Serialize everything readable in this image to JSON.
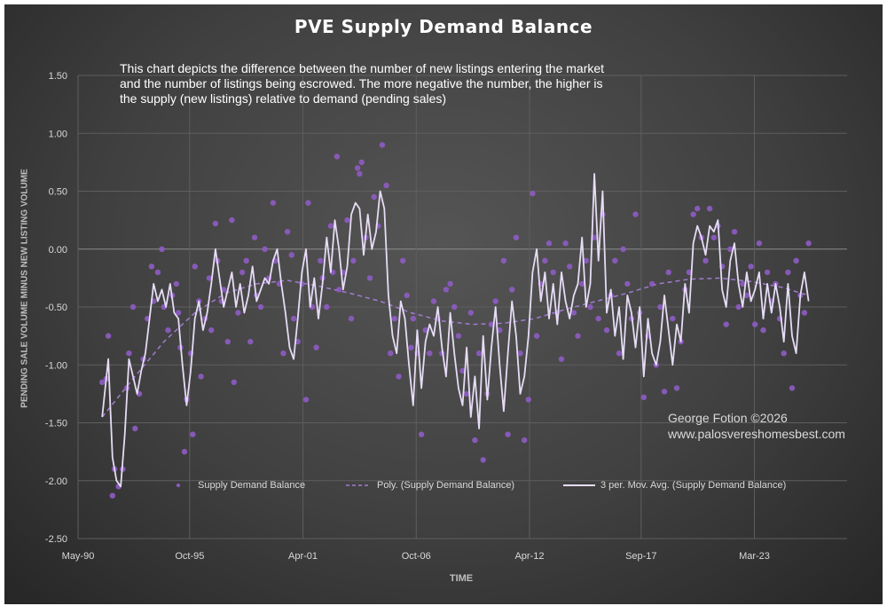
{
  "chart_data": {
    "type": "scatter",
    "title": "PVE Supply Demand Balance",
    "annotation": "This chart depicts the difference between the number of new listings entering the market and the number of listings being escrowed.  The more negative the number, the higher is the supply (new listings) relative to demand (pending sales)",
    "credit_line1": "George Fotion ©2026",
    "credit_line2": "www.palosvereshomesbest.com",
    "xlabel": "TIME",
    "ylabel": "PENDING SALE VOLUME MINUS NEW LISTING VOLUME",
    "ylim": [
      -2.5,
      1.5
    ],
    "yticks": [
      "1.50",
      "1.00",
      "0.50",
      "0.00",
      "-0.50",
      "-1.00",
      "-1.50",
      "-2.00",
      "-2.50"
    ],
    "xlim": [
      1990.33,
      2027.67
    ],
    "xticks": [
      {
        "label": "May-90",
        "x": 1990.33
      },
      {
        "label": "Oct-95",
        "x": 1995.75
      },
      {
        "label": "Apr-01",
        "x": 2001.25
      },
      {
        "label": "Oct-06",
        "x": 2006.75
      },
      {
        "label": "Apr-12",
        "x": 2012.25
      },
      {
        "label": "Sep-17",
        "x": 2017.67
      },
      {
        "label": "Mar-23",
        "x": 2023.17
      }
    ],
    "grid": true,
    "legend_position": "bottom",
    "colors": {
      "points": "#8e5cc4",
      "poly_trend": "#a07ccf",
      "moving_avg": "#e6dcf5",
      "grid": "#5e5e5e"
    },
    "series": [
      {
        "name": "Supply Demand Balance",
        "kind": "scatter"
      },
      {
        "name": "Poly. (Supply Demand Balance)",
        "kind": "trend"
      },
      {
        "name": "3 per. Mov. Avg. (Supply Demand Balance)",
        "kind": "moving_average"
      }
    ],
    "points": [
      [
        1991.5,
        -1.15
      ],
      [
        1991.7,
        -1.12
      ],
      [
        1991.8,
        -0.75
      ],
      [
        1992.0,
        -2.13
      ],
      [
        1992.1,
        -1.9
      ],
      [
        1992.3,
        -2.05
      ],
      [
        1992.5,
        -1.9
      ],
      [
        1992.7,
        -1.2
      ],
      [
        1992.8,
        -0.9
      ],
      [
        1993.0,
        -0.5
      ],
      [
        1993.1,
        -1.55
      ],
      [
        1993.3,
        -1.25
      ],
      [
        1993.5,
        -0.95
      ],
      [
        1993.7,
        -0.6
      ],
      [
        1993.9,
        -0.15
      ],
      [
        1994.0,
        -0.45
      ],
      [
        1994.2,
        -0.2
      ],
      [
        1994.4,
        0.0
      ],
      [
        1994.5,
        -0.5
      ],
      [
        1994.7,
        -0.7
      ],
      [
        1994.9,
        -0.4
      ],
      [
        1995.1,
        -0.3
      ],
      [
        1995.2,
        -0.55
      ],
      [
        1995.3,
        -0.85
      ],
      [
        1995.5,
        -1.75
      ],
      [
        1995.6,
        -1.3
      ],
      [
        1995.8,
        -0.9
      ],
      [
        1995.9,
        -1.6
      ],
      [
        1996.0,
        -0.15
      ],
      [
        1996.2,
        -0.45
      ],
      [
        1996.3,
        -1.1
      ],
      [
        1996.5,
        -0.6
      ],
      [
        1996.7,
        -0.25
      ],
      [
        1996.8,
        -0.7
      ],
      [
        1997.0,
        0.22
      ],
      [
        1997.1,
        -0.1
      ],
      [
        1997.3,
        -0.45
      ],
      [
        1997.4,
        -0.35
      ],
      [
        1997.6,
        -0.8
      ],
      [
        1997.8,
        0.25
      ],
      [
        1997.9,
        -1.15
      ],
      [
        1998.1,
        -0.55
      ],
      [
        1998.3,
        -0.2
      ],
      [
        1998.5,
        -0.1
      ],
      [
        1998.7,
        -0.8
      ],
      [
        1998.9,
        0.1
      ],
      [
        1999.0,
        -0.4
      ],
      [
        1999.2,
        -0.5
      ],
      [
        1999.4,
        0.0
      ],
      [
        1999.6,
        -0.25
      ],
      [
        1999.8,
        0.4
      ],
      [
        1999.9,
        -0.1
      ],
      [
        2000.1,
        -0.3
      ],
      [
        2000.3,
        -0.9
      ],
      [
        2000.5,
        0.15
      ],
      [
        2000.7,
        -0.05
      ],
      [
        2000.8,
        -0.6
      ],
      [
        2001.0,
        -0.8
      ],
      [
        2001.2,
        -0.3
      ],
      [
        2001.4,
        -1.3
      ],
      [
        2001.5,
        0.4
      ],
      [
        2001.7,
        -0.5
      ],
      [
        2001.9,
        -0.85
      ],
      [
        2002.1,
        -0.1
      ],
      [
        2002.2,
        -0.25
      ],
      [
        2002.4,
        -0.5
      ],
      [
        2002.6,
        0.2
      ],
      [
        2002.7,
        -0.2
      ],
      [
        2002.9,
        0.8
      ],
      [
        2003.0,
        -0.35
      ],
      [
        2003.2,
        -0.2
      ],
      [
        2003.4,
        0.25
      ],
      [
        2003.6,
        -0.6
      ],
      [
        2003.7,
        -0.1
      ],
      [
        2003.9,
        0.7
      ],
      [
        2004.0,
        0.65
      ],
      [
        2004.1,
        0.75
      ],
      [
        2004.3,
        0.1
      ],
      [
        2004.5,
        -0.25
      ],
      [
        2004.7,
        0.45
      ],
      [
        2004.9,
        0.2
      ],
      [
        2005.1,
        0.9
      ],
      [
        2005.3,
        0.55
      ],
      [
        2005.5,
        -0.9
      ],
      [
        2005.7,
        -0.6
      ],
      [
        2005.9,
        -1.1
      ],
      [
        2006.1,
        -0.1
      ],
      [
        2006.3,
        -0.4
      ],
      [
        2006.5,
        -0.85
      ],
      [
        2006.6,
        -0.6
      ],
      [
        2006.8,
        -0.9
      ],
      [
        2007.0,
        -1.6
      ],
      [
        2007.2,
        -0.7
      ],
      [
        2007.4,
        -0.9
      ],
      [
        2007.6,
        -0.45
      ],
      [
        2007.8,
        -0.6
      ],
      [
        2008.0,
        -0.9
      ],
      [
        2008.2,
        -0.35
      ],
      [
        2008.4,
        -0.3
      ],
      [
        2008.6,
        -0.5
      ],
      [
        2008.8,
        -0.75
      ],
      [
        2009.0,
        -1.05
      ],
      [
        2009.2,
        -1.25
      ],
      [
        2009.4,
        -0.55
      ],
      [
        2009.6,
        -1.65
      ],
      [
        2009.8,
        -0.9
      ],
      [
        2010.0,
        -1.82
      ],
      [
        2010.2,
        -1.25
      ],
      [
        2010.4,
        -0.65
      ],
      [
        2010.6,
        -0.45
      ],
      [
        2010.8,
        -0.7
      ],
      [
        2011.0,
        -0.1
      ],
      [
        2011.2,
        -1.6
      ],
      [
        2011.4,
        -0.35
      ],
      [
        2011.6,
        0.1
      ],
      [
        2011.8,
        -0.9
      ],
      [
        2012.0,
        -1.65
      ],
      [
        2012.2,
        -1.3
      ],
      [
        2012.4,
        0.48
      ],
      [
        2012.6,
        -0.75
      ],
      [
        2012.8,
        -0.3
      ],
      [
        2013.0,
        -0.1
      ],
      [
        2013.2,
        0.05
      ],
      [
        2013.4,
        -0.2
      ],
      [
        2013.6,
        -0.55
      ],
      [
        2013.8,
        -0.95
      ],
      [
        2014.0,
        0.05
      ],
      [
        2014.2,
        -0.15
      ],
      [
        2014.4,
        -0.55
      ],
      [
        2014.6,
        -0.75
      ],
      [
        2014.8,
        -0.3
      ],
      [
        2015.0,
        -0.1
      ],
      [
        2015.2,
        -0.5
      ],
      [
        2015.4,
        0.1
      ],
      [
        2015.6,
        -0.6
      ],
      [
        2015.8,
        0.3
      ],
      [
        2016.0,
        -0.7
      ],
      [
        2016.2,
        -0.4
      ],
      [
        2016.4,
        -0.1
      ],
      [
        2016.6,
        -0.9
      ],
      [
        2016.8,
        0.0
      ],
      [
        2017.0,
        -0.3
      ],
      [
        2017.2,
        -0.6
      ],
      [
        2017.4,
        0.3
      ],
      [
        2017.6,
        -0.55
      ],
      [
        2017.8,
        -1.28
      ],
      [
        2018.0,
        -0.75
      ],
      [
        2018.2,
        -0.3
      ],
      [
        2018.4,
        -1.0
      ],
      [
        2018.6,
        -0.5
      ],
      [
        2018.8,
        -1.23
      ],
      [
        2019.0,
        -0.2
      ],
      [
        2019.2,
        -0.6
      ],
      [
        2019.4,
        -1.2
      ],
      [
        2019.6,
        -0.8
      ],
      [
        2019.8,
        -0.35
      ],
      [
        2020.0,
        -0.2
      ],
      [
        2020.2,
        0.3
      ],
      [
        2020.4,
        0.35
      ],
      [
        2020.6,
        0.1
      ],
      [
        2020.8,
        -0.1
      ],
      [
        2021.0,
        0.35
      ],
      [
        2021.2,
        0.1
      ],
      [
        2021.4,
        0.2
      ],
      [
        2021.6,
        -0.15
      ],
      [
        2021.8,
        -0.65
      ],
      [
        2022.0,
        0.0
      ],
      [
        2022.2,
        0.15
      ],
      [
        2022.4,
        -0.5
      ],
      [
        2022.6,
        -0.3
      ],
      [
        2022.8,
        -0.4
      ],
      [
        2023.0,
        -0.15
      ],
      [
        2023.2,
        -0.65
      ],
      [
        2023.4,
        0.05
      ],
      [
        2023.6,
        -0.7
      ],
      [
        2023.8,
        -0.2
      ],
      [
        2024.0,
        -0.45
      ],
      [
        2024.2,
        -0.3
      ],
      [
        2024.4,
        -0.6
      ],
      [
        2024.6,
        -0.9
      ],
      [
        2024.8,
        -0.2
      ],
      [
        2025.0,
        -1.2
      ],
      [
        2025.2,
        -0.1
      ],
      [
        2025.4,
        -0.4
      ],
      [
        2025.6,
        -0.55
      ],
      [
        2025.8,
        0.05
      ]
    ],
    "trend": [
      [
        1991.5,
        -1.45
      ],
      [
        1993.0,
        -1.12
      ],
      [
        1994.5,
        -0.8
      ],
      [
        1996.0,
        -0.55
      ],
      [
        1997.5,
        -0.38
      ],
      [
        1999.0,
        -0.3
      ],
      [
        2000.5,
        -0.27
      ],
      [
        2002.0,
        -0.32
      ],
      [
        2003.5,
        -0.38
      ],
      [
        2005.0,
        -0.45
      ],
      [
        2006.5,
        -0.55
      ],
      [
        2008.0,
        -0.62
      ],
      [
        2009.5,
        -0.65
      ],
      [
        2011.0,
        -0.64
      ],
      [
        2012.5,
        -0.6
      ],
      [
        2014.0,
        -0.52
      ],
      [
        2015.5,
        -0.45
      ],
      [
        2017.0,
        -0.38
      ],
      [
        2018.5,
        -0.3
      ],
      [
        2020.0,
        -0.26
      ],
      [
        2021.5,
        -0.25
      ],
      [
        2023.0,
        -0.28
      ],
      [
        2024.5,
        -0.33
      ],
      [
        2025.8,
        -0.4
      ]
    ],
    "moving_avg": [
      [
        1991.5,
        -1.45
      ],
      [
        1991.8,
        -0.95
      ],
      [
        1992.0,
        -1.8
      ],
      [
        1992.2,
        -2.0
      ],
      [
        1992.4,
        -2.05
      ],
      [
        1992.6,
        -1.6
      ],
      [
        1992.8,
        -0.95
      ],
      [
        1993.0,
        -1.1
      ],
      [
        1993.2,
        -1.25
      ],
      [
        1993.4,
        -1.05
      ],
      [
        1993.6,
        -0.9
      ],
      [
        1993.8,
        -0.6
      ],
      [
        1994.0,
        -0.3
      ],
      [
        1994.2,
        -0.45
      ],
      [
        1994.4,
        -0.35
      ],
      [
        1994.6,
        -0.5
      ],
      [
        1994.8,
        -0.3
      ],
      [
        1995.0,
        -0.55
      ],
      [
        1995.2,
        -0.6
      ],
      [
        1995.4,
        -1.0
      ],
      [
        1995.6,
        -1.35
      ],
      [
        1995.8,
        -1.05
      ],
      [
        1996.0,
        -0.6
      ],
      [
        1996.2,
        -0.45
      ],
      [
        1996.4,
        -0.7
      ],
      [
        1996.6,
        -0.55
      ],
      [
        1996.8,
        -0.3
      ],
      [
        1997.0,
        0.0
      ],
      [
        1997.2,
        -0.25
      ],
      [
        1997.4,
        -0.5
      ],
      [
        1997.6,
        -0.35
      ],
      [
        1997.8,
        -0.2
      ],
      [
        1998.0,
        -0.5
      ],
      [
        1998.2,
        -0.3
      ],
      [
        1998.4,
        -0.55
      ],
      [
        1998.6,
        -0.4
      ],
      [
        1998.8,
        -0.15
      ],
      [
        1999.0,
        -0.45
      ],
      [
        1999.2,
        -0.35
      ],
      [
        1999.4,
        -0.25
      ],
      [
        1999.6,
        -0.3
      ],
      [
        1999.8,
        -0.1
      ],
      [
        2000.0,
        0.0
      ],
      [
        2000.2,
        -0.3
      ],
      [
        2000.4,
        -0.55
      ],
      [
        2000.6,
        -0.85
      ],
      [
        2000.8,
        -0.95
      ],
      [
        2001.0,
        -0.6
      ],
      [
        2001.2,
        -0.2
      ],
      [
        2001.4,
        0.0
      ],
      [
        2001.6,
        -0.5
      ],
      [
        2001.8,
        -0.25
      ],
      [
        2002.0,
        -0.6
      ],
      [
        2002.2,
        -0.3
      ],
      [
        2002.4,
        0.1
      ],
      [
        2002.6,
        -0.2
      ],
      [
        2002.8,
        0.25
      ],
      [
        2003.0,
        0.0
      ],
      [
        2003.2,
        -0.35
      ],
      [
        2003.4,
        -0.15
      ],
      [
        2003.6,
        0.3
      ],
      [
        2003.8,
        0.4
      ],
      [
        2004.0,
        0.35
      ],
      [
        2004.2,
        -0.05
      ],
      [
        2004.4,
        0.3
      ],
      [
        2004.6,
        0.0
      ],
      [
        2004.8,
        0.15
      ],
      [
        2005.0,
        0.5
      ],
      [
        2005.2,
        0.35
      ],
      [
        2005.4,
        -0.4
      ],
      [
        2005.6,
        -0.75
      ],
      [
        2005.8,
        -0.9
      ],
      [
        2006.0,
        -0.45
      ],
      [
        2006.2,
        -0.6
      ],
      [
        2006.4,
        -1.0
      ],
      [
        2006.6,
        -1.35
      ],
      [
        2006.8,
        -0.7
      ],
      [
        2007.0,
        -1.2
      ],
      [
        2007.2,
        -0.8
      ],
      [
        2007.4,
        -0.65
      ],
      [
        2007.6,
        -0.75
      ],
      [
        2007.8,
        -0.5
      ],
      [
        2008.0,
        -0.85
      ],
      [
        2008.2,
        -1.1
      ],
      [
        2008.4,
        -0.55
      ],
      [
        2008.6,
        -0.9
      ],
      [
        2008.8,
        -1.2
      ],
      [
        2009.0,
        -1.35
      ],
      [
        2009.2,
        -0.85
      ],
      [
        2009.4,
        -1.45
      ],
      [
        2009.6,
        -1.1
      ],
      [
        2009.8,
        -1.55
      ],
      [
        2010.0,
        -0.75
      ],
      [
        2010.2,
        -1.3
      ],
      [
        2010.4,
        -0.85
      ],
      [
        2010.6,
        -0.5
      ],
      [
        2010.8,
        -1.0
      ],
      [
        2011.0,
        -1.4
      ],
      [
        2011.2,
        -0.9
      ],
      [
        2011.4,
        -0.45
      ],
      [
        2011.6,
        -0.75
      ],
      [
        2011.8,
        -1.25
      ],
      [
        2012.0,
        -1.1
      ],
      [
        2012.2,
        -0.75
      ],
      [
        2012.4,
        -0.2
      ],
      [
        2012.6,
        0.0
      ],
      [
        2012.8,
        -0.45
      ],
      [
        2013.0,
        -0.2
      ],
      [
        2013.2,
        -0.6
      ],
      [
        2013.4,
        -0.3
      ],
      [
        2013.6,
        -0.65
      ],
      [
        2013.8,
        -0.2
      ],
      [
        2014.0,
        -0.45
      ],
      [
        2014.2,
        -0.6
      ],
      [
        2014.4,
        -0.4
      ],
      [
        2014.6,
        -0.3
      ],
      [
        2014.8,
        0.1
      ],
      [
        2015.0,
        -0.5
      ],
      [
        2015.2,
        -0.3
      ],
      [
        2015.4,
        0.65
      ],
      [
        2015.6,
        -0.1
      ],
      [
        2015.8,
        0.5
      ],
      [
        2016.0,
        -0.55
      ],
      [
        2016.2,
        -0.35
      ],
      [
        2016.4,
        -0.75
      ],
      [
        2016.6,
        -0.5
      ],
      [
        2016.8,
        -0.95
      ],
      [
        2017.0,
        -0.4
      ],
      [
        2017.2,
        -0.55
      ],
      [
        2017.4,
        -0.85
      ],
      [
        2017.6,
        -0.5
      ],
      [
        2017.8,
        -1.1
      ],
      [
        2018.0,
        -0.6
      ],
      [
        2018.2,
        -0.9
      ],
      [
        2018.4,
        -1.0
      ],
      [
        2018.6,
        -0.8
      ],
      [
        2018.8,
        -0.4
      ],
      [
        2019.0,
        -0.7
      ],
      [
        2019.2,
        -1.0
      ],
      [
        2019.4,
        -0.65
      ],
      [
        2019.6,
        -0.8
      ],
      [
        2019.8,
        -0.3
      ],
      [
        2020.0,
        -0.55
      ],
      [
        2020.2,
        0.05
      ],
      [
        2020.4,
        0.2
      ],
      [
        2020.6,
        0.1
      ],
      [
        2020.8,
        -0.05
      ],
      [
        2021.0,
        0.2
      ],
      [
        2021.2,
        0.15
      ],
      [
        2021.4,
        0.25
      ],
      [
        2021.6,
        -0.35
      ],
      [
        2021.8,
        -0.5
      ],
      [
        2022.0,
        -0.1
      ],
      [
        2022.2,
        0.05
      ],
      [
        2022.4,
        -0.3
      ],
      [
        2022.6,
        -0.5
      ],
      [
        2022.8,
        -0.2
      ],
      [
        2023.0,
        -0.45
      ],
      [
        2023.2,
        -0.35
      ],
      [
        2023.4,
        -0.2
      ],
      [
        2023.6,
        -0.6
      ],
      [
        2023.8,
        -0.3
      ],
      [
        2024.0,
        -0.55
      ],
      [
        2024.2,
        -0.3
      ],
      [
        2024.4,
        -0.5
      ],
      [
        2024.6,
        -0.8
      ],
      [
        2024.8,
        -0.3
      ],
      [
        2025.0,
        -0.75
      ],
      [
        2025.2,
        -0.9
      ],
      [
        2025.4,
        -0.4
      ],
      [
        2025.6,
        -0.2
      ],
      [
        2025.8,
        -0.45
      ]
    ]
  }
}
